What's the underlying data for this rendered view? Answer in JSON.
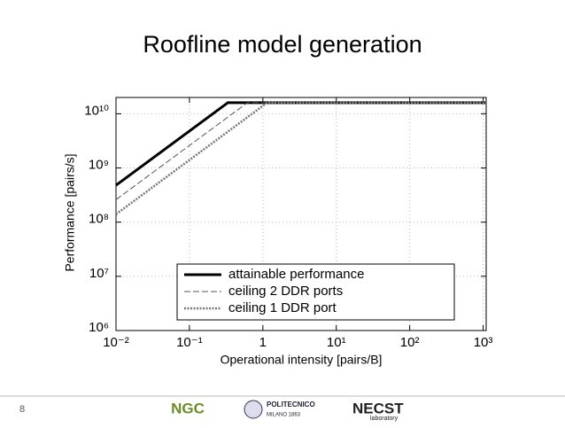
{
  "title": "Roofline model generation",
  "chart_data": {
    "type": "line",
    "xlabel": "Operational intensity [pairs/B]",
    "ylabel": "Performance [pairs/s]",
    "xscale": "log",
    "yscale": "log",
    "xlim": [
      0.01,
      1100
    ],
    "ylim": [
      1000000,
      20000000000
    ],
    "xticks": [
      {
        "value": 0.01,
        "label": "10⁻²"
      },
      {
        "value": 0.1,
        "label": "10⁻¹"
      },
      1,
      {
        "value": 10,
        "label": "10¹"
      },
      {
        "value": 100,
        "label": "10²"
      },
      {
        "value": 1000,
        "label": "10³"
      }
    ],
    "yticks": [
      {
        "value": 1000000,
        "label": "10⁶"
      },
      {
        "value": 10000000,
        "label": "10⁷"
      },
      {
        "value": 100000000,
        "label": "10⁸"
      },
      {
        "value": 1000000000,
        "label": "10⁹"
      },
      {
        "value": 10000000000,
        "label": "10¹⁰"
      }
    ],
    "grid": true,
    "legend": "lower right",
    "series": [
      {
        "name": "attainable performance",
        "color": "#000000",
        "style": "solid",
        "x": [
          0.01,
          0.333,
          1100
        ],
        "values": [
          480000000,
          16000000000,
          16000000000
        ]
      },
      {
        "name": "ceiling 2 DDR ports",
        "color": "#555555",
        "style": "dashed",
        "x": [
          0.01,
          0.615,
          1100
        ],
        "values": [
          260000000,
          16000000000,
          16000000000
        ]
      },
      {
        "name": "ceiling 1 DDR port",
        "color": "#777777",
        "style": "dotted",
        "x": [
          0.01,
          1.14,
          1100
        ],
        "values": [
          140000000,
          16000000000,
          16000000000
        ]
      }
    ]
  },
  "footer": {
    "page": "8",
    "logo1": "NGC",
    "logo2": "POLITECNICO",
    "logo2_sub": "MILANO 1863",
    "logo3": "NECST",
    "logo3_sub": "laboratory"
  }
}
